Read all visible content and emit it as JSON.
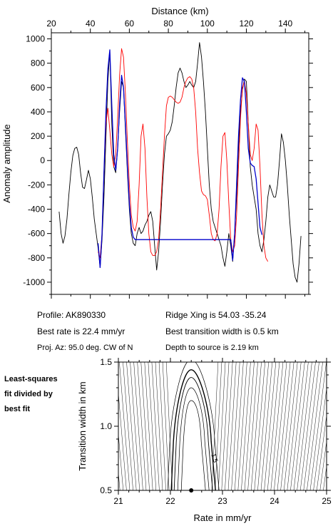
{
  "info": {
    "profile": "Profile: AK890330",
    "best_rate": "Best rate is 22.4 mm/yr",
    "proj_az": "Proj. Az: 95.0 deg. CW of N",
    "ridge_xing": "Ridge Xing is 54.03 -35.24",
    "best_transition": "Best transition width is 0.5 km",
    "depth": "Depth to source is   2.19 km"
  },
  "side_note": [
    "Least-squares",
    "fit divided by",
    "best fit"
  ],
  "chart_data": [
    {
      "type": "line",
      "xlabel": "Distance (km)",
      "ylabel": "Anomaly amplitude",
      "xlim": [
        20,
        152
      ],
      "ylim": [
        -1100,
        1050
      ],
      "xticks": [
        20,
        40,
        60,
        80,
        100,
        120,
        140
      ],
      "yticks": [
        1000,
        800,
        600,
        400,
        200,
        0,
        -200,
        -400,
        -600,
        -800,
        -1000
      ],
      "x_axis_position": "top",
      "series": [
        {
          "color": "#000000",
          "points": [
            [
              24,
              -420
            ],
            [
              25,
              -600
            ],
            [
              26,
              -680
            ],
            [
              27,
              -620
            ],
            [
              28,
              -480
            ],
            [
              29,
              -280
            ],
            [
              30,
              -100
            ],
            [
              31,
              40
            ],
            [
              32,
              100
            ],
            [
              33,
              110
            ],
            [
              34,
              50
            ],
            [
              35,
              -100
            ],
            [
              36,
              -220
            ],
            [
              37,
              -230
            ],
            [
              38,
              -160
            ],
            [
              39,
              -80
            ],
            [
              40,
              -150
            ],
            [
              41,
              -300
            ],
            [
              42,
              -480
            ],
            [
              43,
              -600
            ],
            [
              44,
              -720
            ],
            [
              45,
              -880
            ],
            [
              46,
              -650
            ],
            [
              47,
              -300
            ],
            [
              48,
              200
            ],
            [
              49,
              650
            ],
            [
              50,
              900
            ],
            [
              51,
              300
            ],
            [
              52,
              -50
            ],
            [
              53,
              -100
            ],
            [
              54,
              100
            ],
            [
              55,
              400
            ],
            [
              56,
              650
            ],
            [
              57,
              600
            ],
            [
              58,
              250
            ],
            [
              59,
              -100
            ],
            [
              60,
              -400
            ],
            [
              61,
              -600
            ],
            [
              62,
              -680
            ],
            [
              63,
              -700
            ],
            [
              64,
              -600
            ],
            [
              65,
              -550
            ],
            [
              66,
              -600
            ],
            [
              67,
              -580
            ],
            [
              68,
              -530
            ],
            [
              69,
              -500
            ],
            [
              70,
              -450
            ],
            [
              71,
              -420
            ],
            [
              72,
              -500
            ],
            [
              73,
              -700
            ],
            [
              74,
              -900
            ],
            [
              75,
              -750
            ],
            [
              76,
              -500
            ],
            [
              77,
              -200
            ],
            [
              78,
              50
            ],
            [
              79,
              200
            ],
            [
              80,
              220
            ],
            [
              81,
              250
            ],
            [
              82,
              320
            ],
            [
              83,
              450
            ],
            [
              84,
              600
            ],
            [
              85,
              720
            ],
            [
              86,
              760
            ],
            [
              87,
              720
            ],
            [
              88,
              650
            ],
            [
              89,
              600
            ],
            [
              90,
              620
            ],
            [
              91,
              650
            ],
            [
              92,
              620
            ],
            [
              93,
              600
            ],
            [
              94,
              650
            ],
            [
              95,
              800
            ],
            [
              96,
              970
            ],
            [
              97,
              850
            ],
            [
              98,
              650
            ],
            [
              99,
              400
            ],
            [
              100,
              100
            ],
            [
              101,
              -200
            ],
            [
              102,
              -400
            ],
            [
              103,
              -500
            ],
            [
              104,
              -550
            ],
            [
              105,
              -600
            ],
            [
              106,
              -650
            ],
            [
              107,
              -700
            ],
            [
              108,
              -800
            ],
            [
              109,
              -870
            ],
            [
              110,
              -750
            ],
            [
              111,
              -600
            ],
            [
              112,
              -700
            ],
            [
              113,
              -830
            ],
            [
              114,
              -600
            ],
            [
              115,
              -300
            ],
            [
              116,
              100
            ],
            [
              117,
              400
            ],
            [
              118,
              580
            ],
            [
              119,
              670
            ],
            [
              120,
              650
            ],
            [
              121,
              300
            ],
            [
              122,
              -50
            ],
            [
              123,
              -200
            ],
            [
              124,
              -300
            ],
            [
              125,
              -400
            ],
            [
              126,
              -600
            ],
            [
              127,
              -700
            ],
            [
              128,
              -750
            ],
            [
              129,
              -650
            ],
            [
              130,
              -500
            ],
            [
              131,
              -300
            ],
            [
              132,
              -200
            ],
            [
              133,
              -250
            ],
            [
              134,
              -300
            ],
            [
              135,
              -300
            ],
            [
              136,
              -200
            ],
            [
              137,
              0
            ],
            [
              138,
              220
            ],
            [
              139,
              150
            ],
            [
              140,
              0
            ],
            [
              141,
              -200
            ],
            [
              142,
              -450
            ],
            [
              143,
              -650
            ],
            [
              144,
              -850
            ],
            [
              145,
              -960
            ],
            [
              146,
              -1000
            ],
            [
              147,
              -850
            ],
            [
              148,
              -620
            ]
          ]
        },
        {
          "color": "#ff0000",
          "points": [
            [
              44,
              -750
            ],
            [
              45,
              -800
            ],
            [
              46,
              -600
            ],
            [
              47,
              -100
            ],
            [
              48,
              300
            ],
            [
              49,
              430
            ],
            [
              50,
              250
            ],
            [
              51,
              50
            ],
            [
              52,
              -50
            ],
            [
              53,
              50
            ],
            [
              54,
              350
            ],
            [
              55,
              700
            ],
            [
              56,
              920
            ],
            [
              57,
              850
            ],
            [
              58,
              550
            ],
            [
              59,
              150
            ],
            [
              60,
              -200
            ],
            [
              61,
              -450
            ],
            [
              62,
              -550
            ],
            [
              63,
              -580
            ],
            [
              64,
              -500
            ],
            [
              65,
              -200
            ],
            [
              66,
              200
            ],
            [
              67,
              300
            ],
            [
              68,
              100
            ],
            [
              69,
              -300
            ],
            [
              70,
              -600
            ],
            [
              71,
              -750
            ],
            [
              72,
              -780
            ],
            [
              73,
              -780
            ],
            [
              74,
              -750
            ],
            [
              75,
              -650
            ],
            [
              76,
              -400
            ],
            [
              77,
              -100
            ],
            [
              78,
              200
            ],
            [
              79,
              450
            ],
            [
              80,
              520
            ],
            [
              81,
              530
            ],
            [
              82,
              520
            ],
            [
              83,
              500
            ],
            [
              84,
              480
            ],
            [
              85,
              470
            ],
            [
              86,
              480
            ],
            [
              87,
              520
            ],
            [
              88,
              600
            ],
            [
              89,
              650
            ],
            [
              90,
              680
            ],
            [
              91,
              690
            ],
            [
              92,
              670
            ],
            [
              93,
              600
            ],
            [
              94,
              400
            ],
            [
              95,
              100
            ],
            [
              96,
              -100
            ],
            [
              97,
              -250
            ],
            [
              98,
              -280
            ],
            [
              99,
              -290
            ],
            [
              100,
              -320
            ],
            [
              101,
              -450
            ],
            [
              102,
              -600
            ],
            [
              103,
              -650
            ],
            [
              104,
              -660
            ],
            [
              105,
              -600
            ],
            [
              106,
              -400
            ],
            [
              107,
              -50
            ],
            [
              108,
              200
            ],
            [
              109,
              230
            ],
            [
              110,
              0
            ],
            [
              111,
              -350
            ],
            [
              112,
              -650
            ],
            [
              113,
              -750
            ],
            [
              114,
              -700
            ],
            [
              115,
              -450
            ],
            [
              116,
              -50
            ],
            [
              117,
              350
            ],
            [
              118,
              600
            ],
            [
              119,
              650
            ],
            [
              120,
              550
            ],
            [
              121,
              300
            ],
            [
              122,
              50
            ],
            [
              123,
              0
            ],
            [
              124,
              100
            ],
            [
              125,
              300
            ],
            [
              126,
              250
            ],
            [
              127,
              -50
            ],
            [
              128,
              -450
            ],
            [
              129,
              -700
            ],
            [
              130,
              -800
            ],
            [
              131,
              -830
            ]
          ]
        },
        {
          "color": "#0000cc",
          "points": [
            [
              44,
              -680
            ],
            [
              45,
              -880
            ],
            [
              46,
              -600
            ],
            [
              47,
              -100
            ],
            [
              48,
              400
            ],
            [
              49,
              750
            ],
            [
              50,
              910
            ],
            [
              51,
              450
            ],
            [
              52,
              50
            ],
            [
              53,
              -80
            ],
            [
              54,
              100
            ],
            [
              55,
              450
            ],
            [
              56,
              700
            ],
            [
              57,
              600
            ],
            [
              58,
              300
            ],
            [
              59,
              -50
            ],
            [
              60,
              -350
            ],
            [
              61,
              -550
            ],
            [
              62,
              -630
            ],
            [
              63,
              -650
            ],
            [
              112,
              -650
            ],
            [
              113,
              -820
            ],
            [
              114,
              -600
            ],
            [
              115,
              -200
            ],
            [
              116,
              200
            ],
            [
              117,
              500
            ],
            [
              118,
              680
            ],
            [
              119,
              650
            ],
            [
              120,
              400
            ],
            [
              121,
              100
            ],
            [
              122,
              -20
            ],
            [
              123,
              -40
            ],
            [
              124,
              -50
            ],
            [
              125,
              -150
            ],
            [
              126,
              -350
            ],
            [
              127,
              -550
            ],
            [
              128,
              -610
            ]
          ]
        }
      ]
    },
    {
      "type": "contour",
      "xlabel": "Rate in mm/yr",
      "ylabel": "Transition width in km",
      "xlim": [
        21,
        25
      ],
      "ylim": [
        0.5,
        1.5
      ],
      "xticks": [
        21,
        22,
        23,
        24,
        25
      ],
      "yticks": [
        0.5,
        1.0,
        1.5
      ],
      "best_fit_point": [
        22.4,
        0.5
      ],
      "contour_label": "1.5"
    }
  ]
}
